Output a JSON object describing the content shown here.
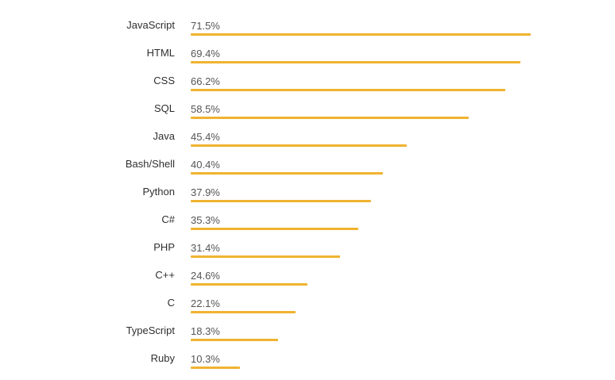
{
  "chart_data": {
    "type": "bar",
    "orientation": "horizontal",
    "unit": "%",
    "xlim": [
      0,
      71.5
    ],
    "grid": false,
    "bar_color": "#F0B330",
    "categories": [
      "JavaScript",
      "HTML",
      "CSS",
      "SQL",
      "Java",
      "Bash/Shell",
      "Python",
      "C#",
      "PHP",
      "C++",
      "C",
      "TypeScript",
      "Ruby"
    ],
    "values": [
      71.5,
      69.4,
      66.2,
      58.5,
      45.4,
      40.4,
      37.9,
      35.3,
      31.4,
      24.6,
      22.1,
      18.3,
      10.3
    ],
    "value_labels": [
      "71.5%",
      "69.4%",
      "66.2%",
      "58.5%",
      "45.4%",
      "40.4%",
      "37.9%",
      "35.3%",
      "31.4%",
      "24.6%",
      "22.1%",
      "18.3%",
      "10.3%"
    ]
  }
}
